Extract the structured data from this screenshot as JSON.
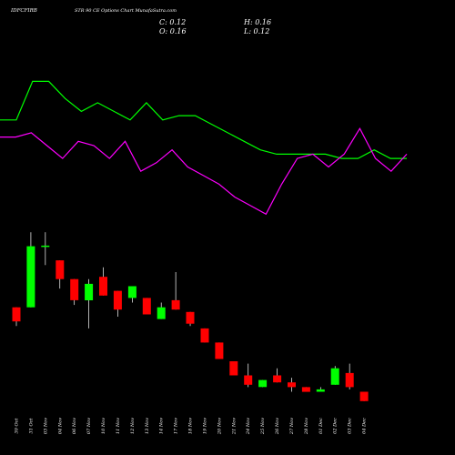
{
  "header": {
    "symbol": "IDFCFIRB",
    "description": "STR 90 CE Options Chart MunafaSutra.com",
    "close_label": "C: 0.12",
    "high_label": "H: 0.16",
    "open_label": "O: 0.16",
    "low_label": "L: 0.12"
  },
  "chart_data": [
    {
      "type": "line",
      "series": [
        {
          "color": "#00ff00",
          "values": [
            0.51,
            0.51,
            0.6,
            0.6,
            0.56,
            0.53,
            0.55,
            0.53,
            0.51,
            0.55,
            0.51,
            0.52,
            0.52,
            0.5,
            0.48,
            0.46,
            0.44,
            0.43,
            0.43,
            0.43,
            0.43,
            0.42,
            0.42,
            0.44,
            0.42,
            0.42
          ]
        },
        {
          "color": "#ff00ff",
          "values": [
            0.47,
            0.47,
            0.48,
            0.45,
            0.42,
            0.46,
            0.45,
            0.42,
            0.46,
            0.39,
            0.41,
            0.44,
            0.4,
            0.38,
            0.36,
            0.33,
            0.31,
            0.29,
            0.36,
            0.42,
            0.43,
            0.4,
            0.43,
            0.49,
            0.42,
            0.39,
            0.43
          ]
        }
      ],
      "grid": false
    },
    {
      "type": "candlestick",
      "categories": [
        "30 Oct",
        "31 Oct",
        "03 Nov",
        "04 Nov",
        "06 Nov",
        "07 Nov",
        "10 Nov",
        "11 Nov",
        "12 Nov",
        "13 Nov",
        "14 Nov",
        "17 Nov",
        "18 Nov",
        "19 Nov",
        "20 Nov",
        "21 Nov",
        "24 Nov",
        "25 Nov",
        "26 Nov",
        "27 Nov",
        "28 Nov",
        "01 Dec",
        "02 Dec",
        "03 Dec",
        "04 Dec"
      ],
      "candles": [
        {
          "open": 0.52,
          "close": 0.46,
          "high": 0.52,
          "low": 0.44,
          "color": "red"
        },
        {
          "open": 0.52,
          "close": 0.78,
          "high": 0.84,
          "low": 0.52,
          "color": "green"
        },
        {
          "open": 0.78,
          "close": 0.78,
          "high": 0.84,
          "low": 0.7,
          "color": "green"
        },
        {
          "open": 0.72,
          "close": 0.64,
          "high": 0.72,
          "low": 0.6,
          "color": "red"
        },
        {
          "open": 0.64,
          "close": 0.55,
          "high": 0.64,
          "low": 0.53,
          "color": "red"
        },
        {
          "open": 0.55,
          "close": 0.62,
          "high": 0.64,
          "low": 0.43,
          "color": "green"
        },
        {
          "open": 0.65,
          "close": 0.57,
          "high": 0.69,
          "low": 0.57,
          "color": "red"
        },
        {
          "open": 0.59,
          "close": 0.51,
          "high": 0.59,
          "low": 0.48,
          "color": "red"
        },
        {
          "open": 0.56,
          "close": 0.61,
          "high": 0.61,
          "low": 0.54,
          "color": "green"
        },
        {
          "open": 0.56,
          "close": 0.49,
          "high": 0.56,
          "low": 0.49,
          "color": "red"
        },
        {
          "open": 0.47,
          "close": 0.52,
          "high": 0.54,
          "low": 0.47,
          "color": "green"
        },
        {
          "open": 0.55,
          "close": 0.51,
          "high": 0.67,
          "low": 0.51,
          "color": "red"
        },
        {
          "open": 0.5,
          "close": 0.45,
          "high": 0.5,
          "low": 0.44,
          "color": "red"
        },
        {
          "open": 0.43,
          "close": 0.37,
          "high": 0.43,
          "low": 0.37,
          "color": "red"
        },
        {
          "open": 0.37,
          "close": 0.3,
          "high": 0.37,
          "low": 0.3,
          "color": "red"
        },
        {
          "open": 0.29,
          "close": 0.23,
          "high": 0.29,
          "low": 0.23,
          "color": "red"
        },
        {
          "open": 0.23,
          "close": 0.19,
          "high": 0.28,
          "low": 0.18,
          "color": "red"
        },
        {
          "open": 0.18,
          "close": 0.21,
          "high": 0.21,
          "low": 0.18,
          "color": "green"
        },
        {
          "open": 0.23,
          "close": 0.2,
          "high": 0.26,
          "low": 0.2,
          "color": "red"
        },
        {
          "open": 0.2,
          "close": 0.18,
          "high": 0.22,
          "low": 0.16,
          "color": "red"
        },
        {
          "open": 0.18,
          "close": 0.16,
          "high": 0.18,
          "low": 0.16,
          "color": "red"
        },
        {
          "open": 0.16,
          "close": 0.17,
          "high": 0.18,
          "low": 0.16,
          "color": "green"
        },
        {
          "open": 0.19,
          "close": 0.26,
          "high": 0.27,
          "low": 0.19,
          "color": "green"
        },
        {
          "open": 0.24,
          "close": 0.18,
          "high": 0.28,
          "low": 0.17,
          "color": "red"
        },
        {
          "open": 0.16,
          "close": 0.12,
          "high": 0.16,
          "low": 0.12,
          "color": "red"
        }
      ],
      "grid": false
    }
  ]
}
